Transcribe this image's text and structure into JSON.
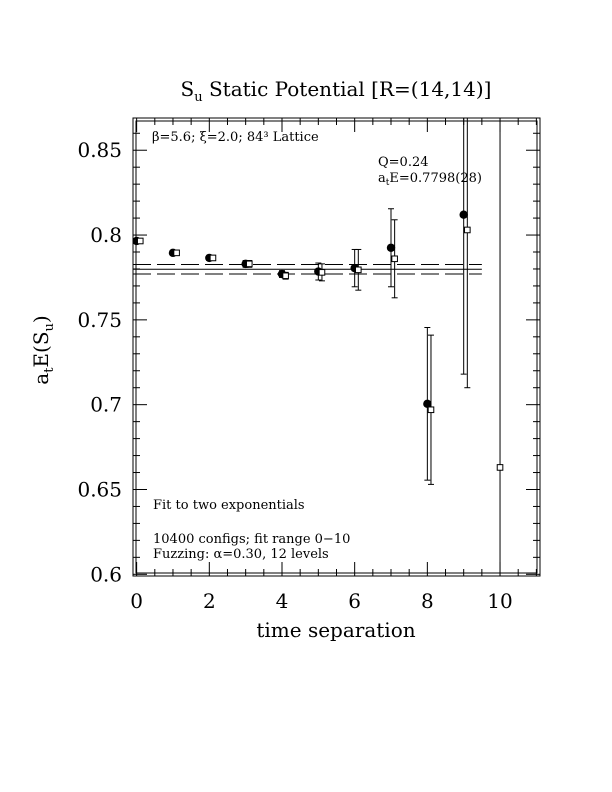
{
  "chart_data": {
    "type": "scatter",
    "title_main": "S",
    "title_sub": "u",
    "title_rest": " Static Potential [R=(14,14)]",
    "xlabel": "time separation",
    "ylabel_main": "a",
    "ylabel_sub1": "t",
    "ylabel_mid": "E(S",
    "ylabel_sub2": "u",
    "ylabel_end": ")",
    "xlim": [
      -0.1,
      11.1
    ],
    "ylim": [
      0.599,
      0.869
    ],
    "x_ticks": [
      0,
      2,
      4,
      6,
      8,
      10
    ],
    "x_tick_labels": [
      "0",
      "2",
      "4",
      "6",
      "8",
      "10"
    ],
    "y_ticks": [
      0.6,
      0.65,
      0.7,
      0.75,
      0.8,
      0.85
    ],
    "y_tick_labels": [
      "0.6",
      "0.65",
      "0.7",
      "0.75",
      "0.8",
      "0.85"
    ],
    "annotations": {
      "lattice": "β=5.6; ξ=2.0; 84³ Lattice",
      "q_value": "Q=0.24",
      "fit_energy_main": "a",
      "fit_energy_sub": "t",
      "fit_energy_rest": "E=0.7798(28)",
      "fit_type": "Fit to two exponentials",
      "configs": "10400 configs; fit range 0−10",
      "fuzzing": "Fuzzing: α=0.30, 12 levels"
    },
    "fit": {
      "value": 0.7798,
      "error": 0.0028,
      "x_range": [
        -0.1,
        9.5
      ]
    },
    "series": [
      {
        "marker": "filled-circle",
        "points": [
          {
            "x": 0,
            "y": 0.7965,
            "err": 0.0015
          },
          {
            "x": 1,
            "y": 0.7895,
            "err": 0.0015
          },
          {
            "x": 2,
            "y": 0.7865,
            "err": 0.0015
          },
          {
            "x": 3,
            "y": 0.783,
            "err": 0.002
          },
          {
            "x": 4,
            "y": 0.777,
            "err": 0.002
          },
          {
            "x": 5,
            "y": 0.7785,
            "err": 0.005
          },
          {
            "x": 6,
            "y": 0.7805,
            "err": 0.011
          },
          {
            "x": 7,
            "y": 0.7925,
            "err": 0.023
          },
          {
            "x": 8,
            "y": 0.7005,
            "err": 0.045
          },
          {
            "x": 9,
            "y": 0.812,
            "err": 0.094
          }
        ]
      },
      {
        "marker": "open-square",
        "points": [
          {
            "x": 0.1,
            "y": 0.7965,
            "err": 0.0015
          },
          {
            "x": 1.1,
            "y": 0.7895,
            "err": 0.0015
          },
          {
            "x": 2.1,
            "y": 0.7865,
            "err": 0.0015
          },
          {
            "x": 3.1,
            "y": 0.783,
            "err": 0.002
          },
          {
            "x": 4.1,
            "y": 0.776,
            "err": 0.002
          },
          {
            "x": 5.1,
            "y": 0.778,
            "err": 0.005
          },
          {
            "x": 6.1,
            "y": 0.7795,
            "err": 0.012
          },
          {
            "x": 7.1,
            "y": 0.786,
            "err": 0.023
          },
          {
            "x": 8.1,
            "y": 0.697,
            "err": 0.044
          },
          {
            "x": 9.1,
            "y": 0.803,
            "err": 0.093
          },
          {
            "x": 10.0,
            "y": 0.663,
            "err": 0.553
          }
        ]
      }
    ]
  }
}
